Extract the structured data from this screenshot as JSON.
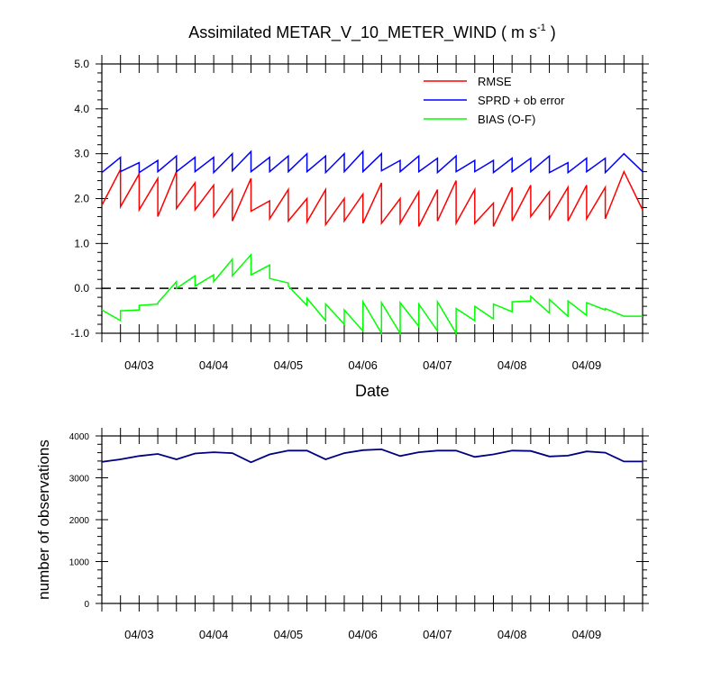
{
  "chart_data": [
    {
      "type": "line",
      "title": "Assimilated METAR_V_10_METER_WIND ( m s",
      "title_superscript": "-1",
      "title_suffix": " )",
      "xlabel": "Date",
      "ylabel": "",
      "x_tick_labels": [
        "04/03",
        "04/04",
        "04/05",
        "04/06",
        "04/07",
        "04/08",
        "04/09"
      ],
      "ylim": [
        -1.0,
        5.0
      ],
      "y_tick_labels": [
        "-1.0",
        "0.0",
        "1.0",
        "2.0",
        "3.0",
        "4.0",
        "5.0"
      ],
      "zero_line": "dashed",
      "legend_position": "top-right",
      "colors": {
        "RMSE": "#ff0000",
        "SPRD + ob error": "#0000ff",
        "BIAS (O-F)": "#00ff00"
      },
      "x_range_days": [
        0.0,
        7.25
      ],
      "series": [
        {
          "name": "RMSE",
          "color": "#ff0000",
          "x": [
            0.0,
            0.25,
            0.25,
            0.5,
            0.5,
            0.75,
            0.75,
            1.0,
            1.0,
            1.25,
            1.25,
            1.5,
            1.5,
            1.75,
            1.75,
            2.0,
            2.0,
            2.25,
            2.25,
            2.5,
            2.5,
            2.75,
            2.75,
            3.0,
            3.0,
            3.25,
            3.25,
            3.5,
            3.5,
            3.75,
            3.75,
            4.0,
            4.0,
            4.25,
            4.25,
            4.5,
            4.5,
            4.75,
            4.75,
            5.0,
            5.0,
            5.25,
            5.25,
            5.5,
            5.5,
            5.75,
            5.75,
            6.0,
            6.0,
            6.25,
            6.25,
            6.5,
            6.5,
            6.75,
            6.75,
            7.0,
            7.0,
            7.25
          ],
          "y": [
            1.85,
            2.65,
            1.82,
            2.55,
            1.75,
            2.45,
            1.6,
            2.6,
            1.78,
            2.35,
            1.75,
            2.3,
            1.6,
            2.2,
            1.5,
            2.45,
            1.72,
            1.95,
            1.55,
            2.2,
            1.5,
            2.0,
            1.48,
            2.2,
            1.42,
            2.0,
            1.5,
            2.1,
            1.45,
            2.35,
            1.45,
            2.0,
            1.45,
            2.15,
            1.38,
            2.2,
            1.5,
            2.4,
            1.45,
            2.2,
            1.45,
            1.9,
            1.38,
            2.25,
            1.5,
            2.3,
            1.6,
            2.15,
            1.55,
            2.25,
            1.5,
            2.3,
            1.55,
            2.25,
            1.55,
            2.6,
            2.6,
            1.75
          ]
        },
        {
          "name": "SPRD + ob error",
          "color": "#0000ff",
          "x": [
            0.0,
            0.25,
            0.25,
            0.5,
            0.5,
            0.75,
            0.75,
            1.0,
            1.0,
            1.25,
            1.25,
            1.5,
            1.5,
            1.75,
            1.75,
            2.0,
            2.0,
            2.25,
            2.25,
            2.5,
            2.5,
            2.75,
            2.75,
            3.0,
            3.0,
            3.25,
            3.25,
            3.5,
            3.5,
            3.75,
            3.75,
            4.0,
            4.0,
            4.25,
            4.25,
            4.5,
            4.5,
            4.75,
            4.75,
            5.0,
            5.0,
            5.25,
            5.25,
            5.5,
            5.5,
            5.75,
            5.75,
            6.0,
            6.0,
            6.25,
            6.25,
            6.5,
            6.5,
            6.75,
            6.75,
            7.0,
            7.0,
            7.25
          ],
          "y": [
            2.58,
            2.92,
            2.6,
            2.8,
            2.58,
            2.85,
            2.6,
            2.95,
            2.6,
            2.92,
            2.6,
            2.92,
            2.58,
            3.0,
            2.62,
            3.05,
            2.6,
            2.92,
            2.6,
            2.95,
            2.6,
            3.0,
            2.6,
            2.95,
            2.58,
            3.0,
            2.6,
            3.05,
            2.6,
            3.0,
            2.62,
            2.85,
            2.6,
            2.95,
            2.6,
            2.9,
            2.58,
            2.95,
            2.6,
            2.85,
            2.6,
            2.85,
            2.58,
            2.9,
            2.6,
            2.9,
            2.6,
            2.95,
            2.58,
            2.8,
            2.58,
            2.9,
            2.6,
            2.9,
            2.58,
            3.0,
            3.0,
            2.6
          ]
        },
        {
          "name": "BIAS (O-F)",
          "color": "#00ff00",
          "x": [
            0.0,
            0.25,
            0.25,
            0.5,
            0.5,
            0.75,
            0.75,
            1.0,
            1.0,
            1.25,
            1.25,
            1.5,
            1.5,
            1.75,
            1.75,
            2.0,
            2.0,
            2.25,
            2.25,
            2.5,
            2.5,
            2.75,
            2.75,
            3.0,
            3.0,
            3.25,
            3.25,
            3.5,
            3.5,
            3.75,
            3.75,
            4.0,
            4.0,
            4.25,
            4.25,
            4.5,
            4.5,
            4.75,
            4.75,
            5.0,
            5.0,
            5.25,
            5.25,
            5.5,
            5.5,
            5.75,
            5.75,
            6.0,
            6.0,
            6.25,
            6.25,
            6.5,
            6.5,
            6.75,
            6.75,
            7.0,
            7.0,
            7.25
          ],
          "y": [
            -0.48,
            -0.72,
            -0.5,
            -0.48,
            -0.38,
            -0.35,
            -0.32,
            0.15,
            0.0,
            0.28,
            0.05,
            0.3,
            0.15,
            0.65,
            0.28,
            0.75,
            0.3,
            0.52,
            0.22,
            0.12,
            0.05,
            -0.38,
            -0.22,
            -0.72,
            -0.35,
            -0.8,
            -0.48,
            -0.95,
            -0.3,
            -1.0,
            -0.32,
            -1.0,
            -0.32,
            -0.85,
            -0.35,
            -0.95,
            -0.3,
            -1.0,
            -0.45,
            -0.72,
            -0.4,
            -0.68,
            -0.35,
            -0.52,
            -0.3,
            -0.28,
            -0.18,
            -0.55,
            -0.25,
            -0.62,
            -0.28,
            -0.6,
            -0.32,
            -0.48,
            -0.45,
            -0.62,
            -0.62,
            -0.62
          ]
        }
      ]
    },
    {
      "type": "line",
      "title": "",
      "xlabel": "",
      "ylabel": "number of observations",
      "x_tick_labels": [
        "04/03",
        "04/04",
        "04/05",
        "04/06",
        "04/07",
        "04/08",
        "04/09"
      ],
      "ylim": [
        0,
        4000
      ],
      "y_tick_labels": [
        "0",
        "1000",
        "2000",
        "3000",
        "4000"
      ],
      "x_range_days": [
        0.0,
        7.25
      ],
      "series": [
        {
          "color": "#000080",
          "x": [
            0.0,
            0.25,
            0.5,
            0.75,
            1.0,
            1.25,
            1.5,
            1.75,
            2.0,
            2.25,
            2.5,
            2.75,
            3.0,
            3.25,
            3.5,
            3.75,
            4.0,
            4.25,
            4.5,
            4.75,
            5.0,
            5.25,
            5.5,
            5.75,
            6.0,
            6.25,
            6.5,
            6.75,
            7.0,
            7.25
          ],
          "y": [
            3380,
            3440,
            3520,
            3570,
            3440,
            3580,
            3610,
            3590,
            3370,
            3560,
            3650,
            3650,
            3440,
            3590,
            3660,
            3680,
            3520,
            3610,
            3650,
            3650,
            3500,
            3560,
            3650,
            3640,
            3510,
            3530,
            3630,
            3600,
            3390,
            3390
          ]
        }
      ]
    }
  ]
}
